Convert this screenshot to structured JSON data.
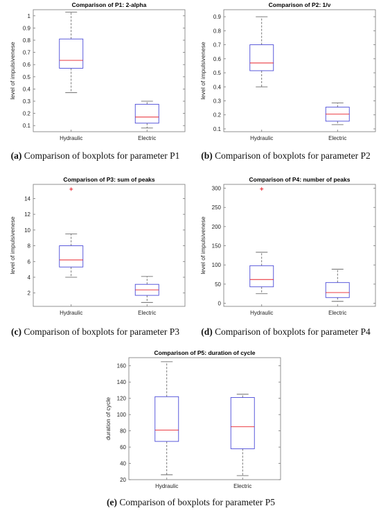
{
  "chart_data": [
    {
      "type": "box",
      "title": "Comparison of P1:  2-alpha",
      "ylabel": "level of impulsivenese",
      "ylim": [
        0.05,
        1.05
      ],
      "yticks": [
        0.1,
        0.2,
        0.3,
        0.4,
        0.5,
        0.6,
        0.7,
        0.8,
        0.9,
        1
      ],
      "yticklabels": [
        "0.1",
        "0.2",
        "0.3",
        "0.4",
        "0.5",
        "0.6",
        "0.7",
        "0.8",
        "0.9",
        "1"
      ],
      "categories": [
        "Hydraulic",
        "Electric"
      ],
      "boxes": [
        {
          "min": 0.37,
          "q1": 0.57,
          "median": 0.635,
          "q3": 0.81,
          "max": 1.03,
          "outliers": []
        },
        {
          "min": 0.08,
          "q1": 0.12,
          "median": 0.17,
          "q3": 0.275,
          "max": 0.3,
          "outliers": []
        }
      ],
      "caption_letter": "(a)",
      "caption_text": " Comparison of boxplots for parameter P1"
    },
    {
      "type": "box",
      "title": "Comparison of P2:  1/ν",
      "ylabel": "level of impulsivenese",
      "ylim": [
        0.08,
        0.95
      ],
      "yticks": [
        0.1,
        0.2,
        0.3,
        0.4,
        0.5,
        0.6,
        0.7,
        0.8,
        0.9
      ],
      "yticklabels": [
        "0.1",
        "0.2",
        "0.3",
        "0.4",
        "0.5",
        "0.6",
        "0.7",
        "0.8",
        "0.9"
      ],
      "categories": [
        "Hydraulic",
        "Electric"
      ],
      "boxes": [
        {
          "min": 0.4,
          "q1": 0.515,
          "median": 0.57,
          "q3": 0.7,
          "max": 0.9,
          "outliers": []
        },
        {
          "min": 0.13,
          "q1": 0.155,
          "median": 0.205,
          "q3": 0.255,
          "max": 0.285,
          "outliers": []
        }
      ],
      "caption_letter": "(b)",
      "caption_text": " Comparison of boxplots for parameter P2"
    },
    {
      "type": "box",
      "title": "Comparison of P3:  sum of peaks",
      "ylabel": "level of impulsivenese",
      "ylim": [
        0.3,
        15.8
      ],
      "yticks": [
        2,
        4,
        6,
        8,
        10,
        12,
        14
      ],
      "yticklabels": [
        "2",
        "4",
        "6",
        "8",
        "10",
        "12",
        "14"
      ],
      "categories": [
        "Hydraulic",
        "Electric"
      ],
      "boxes": [
        {
          "min": 4.0,
          "q1": 5.3,
          "median": 6.2,
          "q3": 8.0,
          "max": 9.5,
          "outliers": [
            15.2
          ]
        },
        {
          "min": 0.8,
          "q1": 1.7,
          "median": 2.4,
          "q3": 3.1,
          "max": 4.1,
          "outliers": []
        }
      ],
      "caption_letter": "(c)",
      "caption_text": " Comparison of boxplots for parameter P3"
    },
    {
      "type": "box",
      "title": "Comparison of P4:  number of peaks",
      "ylabel": "level of impulsivenese",
      "ylim": [
        -8,
        310
      ],
      "yticks": [
        0,
        50,
        100,
        150,
        200,
        250,
        300
      ],
      "yticklabels": [
        "0",
        "50",
        "100",
        "150",
        "200",
        "250",
        "300"
      ],
      "categories": [
        "Hydraulic",
        "Electric"
      ],
      "boxes": [
        {
          "min": 25,
          "q1": 43,
          "median": 62,
          "q3": 98,
          "max": 133,
          "outliers": [
            298
          ]
        },
        {
          "min": 5,
          "q1": 15,
          "median": 28,
          "q3": 54,
          "max": 89,
          "outliers": []
        }
      ],
      "caption_letter": "(d)",
      "caption_text": " Comparison of boxplots for parameter P4"
    },
    {
      "type": "box",
      "title": "Comparison of P5:  duration of cycle",
      "ylabel": "duration of cycle",
      "ylim": [
        20,
        170
      ],
      "yticks": [
        20,
        40,
        60,
        80,
        100,
        120,
        140,
        160
      ],
      "yticklabels": [
        "20",
        "40",
        "60",
        "80",
        "100",
        "120",
        "140",
        "160"
      ],
      "categories": [
        "Hydraulic",
        "Electric"
      ],
      "boxes": [
        {
          "min": 26,
          "q1": 67,
          "median": 81,
          "q3": 122,
          "max": 165,
          "outliers": []
        },
        {
          "min": 25,
          "q1": 58,
          "median": 85,
          "q3": 121,
          "max": 125,
          "outliers": []
        }
      ],
      "caption_letter": "(e)",
      "caption_text": " Comparison of boxplots for parameter P5"
    }
  ],
  "colors": {
    "box": "#4a4ad8",
    "median": "#e8202a",
    "whisker": "#555555",
    "outlier": "#e8202a",
    "axis": "#777777"
  }
}
